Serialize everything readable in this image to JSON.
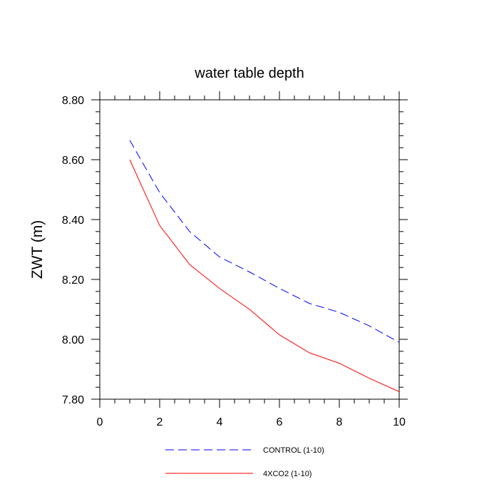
{
  "chart_data": {
    "type": "line",
    "title": "water table depth",
    "xlabel": "",
    "ylabel": "ZWT  (m)",
    "xlim": [
      0,
      10
    ],
    "ylim": [
      7.8,
      8.8
    ],
    "x_ticks": [
      0,
      2,
      4,
      6,
      8,
      10
    ],
    "x_tick_labels": [
      "0",
      "2",
      "4",
      "6",
      "8",
      "10"
    ],
    "y_ticks": [
      7.8,
      8.0,
      8.2,
      8.4,
      8.6,
      8.8
    ],
    "y_tick_labels": [
      "7.80",
      "8.00",
      "8.20",
      "8.40",
      "8.60",
      "8.80"
    ],
    "grid": false,
    "legend_position": "bottom",
    "series": [
      {
        "name": "CONTROL (1-10)",
        "color": "#0000ff",
        "dash": "dashed",
        "x": [
          1,
          2,
          3,
          4,
          5,
          6,
          7,
          8,
          9,
          10
        ],
        "values": [
          8.665,
          8.49,
          8.36,
          8.275,
          8.225,
          8.17,
          8.12,
          8.09,
          8.045,
          7.99
        ]
      },
      {
        "name": "4XCO2 (1-10)",
        "color": "#ff0000",
        "dash": "solid",
        "x": [
          1,
          2,
          3,
          4,
          5,
          6,
          7,
          8,
          9,
          10
        ],
        "values": [
          8.6,
          8.38,
          8.25,
          8.17,
          8.1,
          8.015,
          7.955,
          7.92,
          7.87,
          7.825
        ]
      }
    ]
  }
}
